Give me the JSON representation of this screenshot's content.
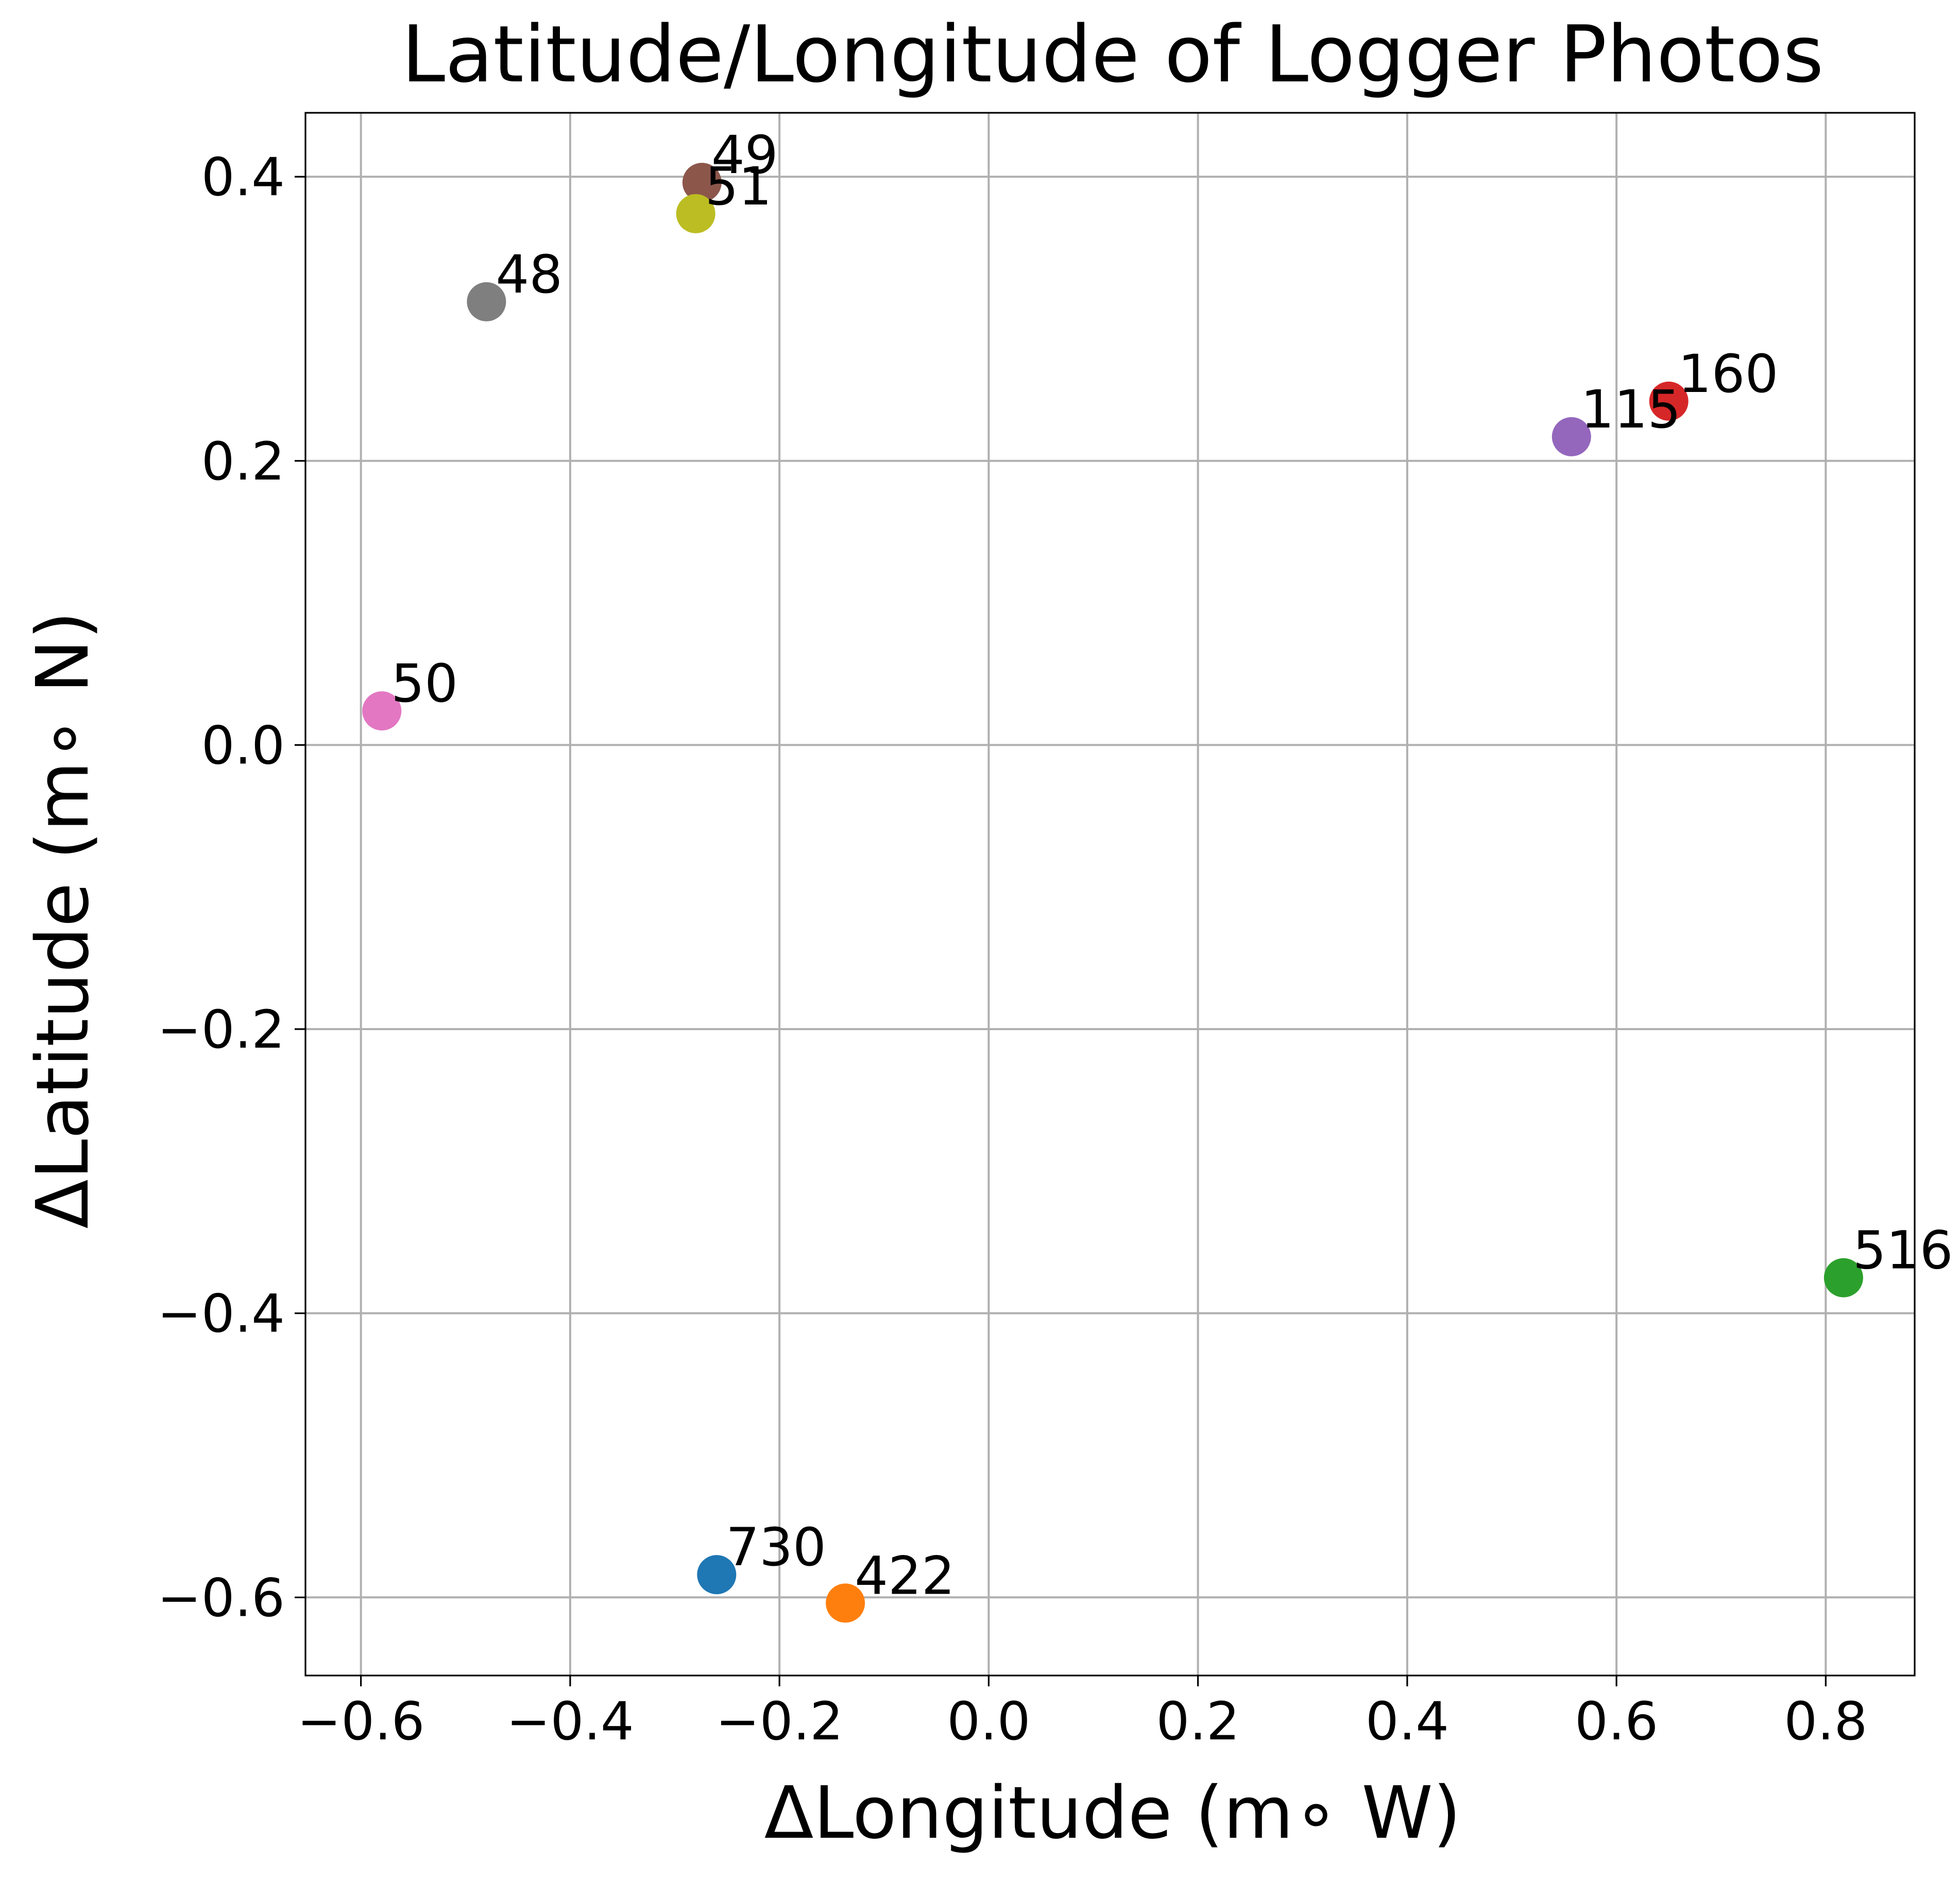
{
  "chart_data": {
    "type": "scatter",
    "title": "Latitude/Longitude of Logger Photos",
    "xlabel": "ΔLongitude (m$^\\circ$ W)",
    "ylabel": "ΔLatitude (m$^\\circ$ N)",
    "xlabel_display": "ΔLongitude (m∘ W)",
    "ylabel_display": "ΔLatitude (m∘ N)",
    "xlim": [
      -0.653,
      0.885
    ],
    "ylim": [
      -0.655,
      0.445
    ],
    "xticks": [
      -0.6,
      -0.4,
      -0.2,
      0.0,
      0.2,
      0.4,
      0.6,
      0.8
    ],
    "yticks": [
      -0.6,
      -0.4,
      -0.2,
      0.0,
      0.2,
      0.4
    ],
    "xtick_labels": [
      "−0.6",
      "−0.4",
      "−0.2",
      "0.0",
      "0.2",
      "0.4",
      "0.6",
      "0.8"
    ],
    "ytick_labels": [
      "−0.6",
      "−0.4",
      "−0.2",
      "0.0",
      "0.2",
      "0.4"
    ],
    "grid": true,
    "points": [
      {
        "label": "730",
        "x": -0.26,
        "y": -0.584,
        "color": "#1f77b4"
      },
      {
        "label": "422",
        "x": -0.137,
        "y": -0.604,
        "color": "#ff7f0e"
      },
      {
        "label": "516",
        "x": 0.817,
        "y": -0.375,
        "color": "#2ca02c"
      },
      {
        "label": "160",
        "x": 0.65,
        "y": 0.242,
        "color": "#d62728"
      },
      {
        "label": "115",
        "x": 0.557,
        "y": 0.217,
        "color": "#9467bd"
      },
      {
        "label": "49",
        "x": -0.274,
        "y": 0.396,
        "color": "#8c564b"
      },
      {
        "label": "50",
        "x": -0.58,
        "y": 0.024,
        "color": "#e377c2"
      },
      {
        "label": "48",
        "x": -0.48,
        "y": 0.312,
        "color": "#7f7f7f"
      },
      {
        "label": "51",
        "x": -0.28,
        "y": 0.374,
        "color": "#bcbd22"
      }
    ]
  }
}
